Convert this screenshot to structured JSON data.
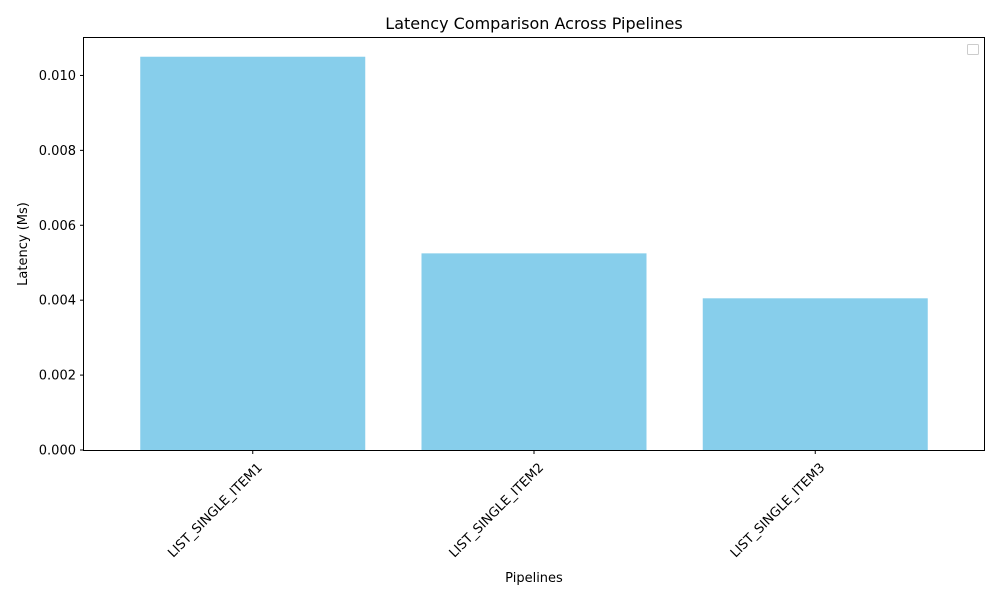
{
  "chart_data": {
    "type": "bar",
    "title": "Latency Comparison Across Pipelines",
    "xlabel": "Pipelines",
    "ylabel": "Latency (Ms)",
    "categories": [
      "LIST_SINGLE_ITEM1",
      "LIST_SINGLE_ITEM2",
      "LIST_SINGLE_ITEM3"
    ],
    "values": [
      0.0105,
      0.00525,
      0.00405
    ],
    "ylim": [
      0,
      0.011
    ],
    "yticks": [
      "0.000",
      "0.002",
      "0.004",
      "0.006",
      "0.008",
      "0.010"
    ],
    "ytick_values": [
      0,
      0.002,
      0.004,
      0.006,
      0.008,
      0.01
    ],
    "bar_color": "#87CEEB",
    "grid": false,
    "legend": {
      "placement": "top-right",
      "entries": []
    }
  }
}
